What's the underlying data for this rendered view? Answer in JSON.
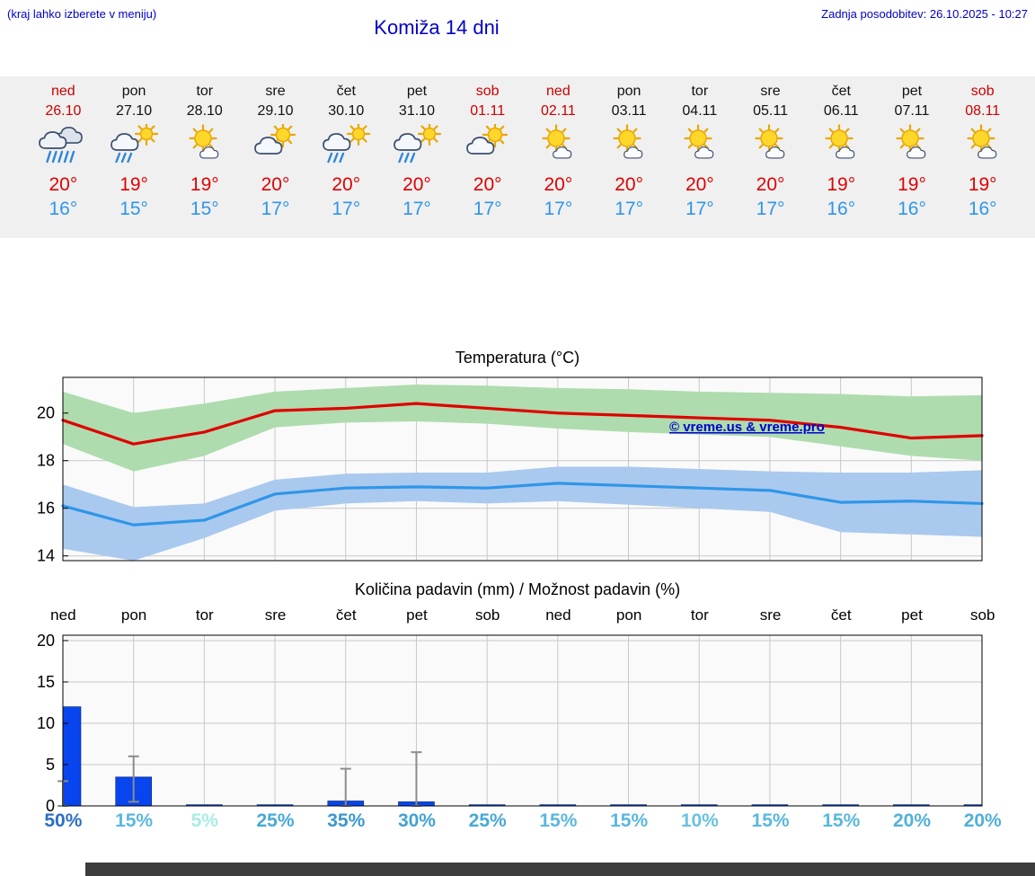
{
  "header": {
    "hint": "(kraj lahko izberete v meniju)",
    "title": "Komiža 14 dni",
    "updated": "Zadnja posodobitev: 26.10.2025 - 10:27"
  },
  "colors": {
    "header_text": "#0000c8",
    "weekend": "#cc0000",
    "temp_max": "#e00000",
    "temp_min": "#2f96e8",
    "precip_bar": "#0845ee"
  },
  "forecast": {
    "days": [
      {
        "name": "ned",
        "date": "26.10",
        "weekend": true,
        "icon": "rain-heavy",
        "tmax": "20°",
        "tmin": "16°"
      },
      {
        "name": "pon",
        "date": "27.10",
        "weekend": false,
        "icon": "sun-cloud-rain",
        "tmax": "19°",
        "tmin": "15°"
      },
      {
        "name": "tor",
        "date": "28.10",
        "weekend": false,
        "icon": "partly-sunny",
        "tmax": "19°",
        "tmin": "15°"
      },
      {
        "name": "sre",
        "date": "29.10",
        "weekend": false,
        "icon": "partly-cloudy",
        "tmax": "20°",
        "tmin": "17°"
      },
      {
        "name": "čet",
        "date": "30.10",
        "weekend": false,
        "icon": "sun-cloud-rain",
        "tmax": "20°",
        "tmin": "17°"
      },
      {
        "name": "pet",
        "date": "31.10",
        "weekend": false,
        "icon": "sun-cloud-rain",
        "tmax": "20°",
        "tmin": "17°"
      },
      {
        "name": "sob",
        "date": "01.11",
        "weekend": true,
        "icon": "partly-cloudy",
        "tmax": "20°",
        "tmin": "17°"
      },
      {
        "name": "ned",
        "date": "02.11",
        "weekend": true,
        "icon": "partly-sunny",
        "tmax": "20°",
        "tmin": "17°"
      },
      {
        "name": "pon",
        "date": "03.11",
        "weekend": false,
        "icon": "partly-sunny",
        "tmax": "20°",
        "tmin": "17°"
      },
      {
        "name": "tor",
        "date": "04.11",
        "weekend": false,
        "icon": "partly-sunny",
        "tmax": "20°",
        "tmin": "17°"
      },
      {
        "name": "sre",
        "date": "05.11",
        "weekend": false,
        "icon": "partly-sunny",
        "tmax": "20°",
        "tmin": "17°"
      },
      {
        "name": "čet",
        "date": "06.11",
        "weekend": false,
        "icon": "partly-sunny",
        "tmax": "19°",
        "tmin": "16°"
      },
      {
        "name": "pet",
        "date": "07.11",
        "weekend": false,
        "icon": "partly-sunny",
        "tmax": "19°",
        "tmin": "16°"
      },
      {
        "name": "sob",
        "date": "08.11",
        "weekend": true,
        "icon": "partly-sunny",
        "tmax": "19°",
        "tmin": "16°"
      }
    ]
  },
  "chart_data": [
    {
      "type": "line",
      "title": "Temperatura (°C)",
      "x_labels": [
        "ned 26.10",
        "pon 27.10",
        "tor 28.10",
        "sre 29.10",
        "čet 30.10",
        "pet 31.10",
        "sob 01.11",
        "ned 02.11",
        "pon 03.11",
        "tor 04.11",
        "sre 05.11",
        "čet 06.11",
        "pet 07.11",
        "sob 08.11"
      ],
      "ylim": [
        13.8,
        21.5
      ],
      "yticks": [
        14,
        16,
        18,
        20
      ],
      "grid": true,
      "legend": "none",
      "watermark": "© vreme.us & vreme.pro",
      "watermark_color": "#0000cc",
      "series": [
        {
          "name": "max-temp",
          "color": "#e00000",
          "width": 3.2,
          "values": [
            19.7,
            18.7,
            19.2,
            20.1,
            20.2,
            20.4,
            20.2,
            20.0,
            19.9,
            19.8,
            19.7,
            19.4,
            18.95,
            19.05
          ]
        },
        {
          "name": "min-temp",
          "color": "#2f96e8",
          "width": 3.2,
          "values": [
            16.1,
            15.3,
            15.5,
            16.6,
            16.85,
            16.9,
            16.85,
            17.05,
            16.95,
            16.85,
            16.75,
            16.25,
            16.3,
            16.2
          ]
        }
      ],
      "bands": [
        {
          "name": "max-range",
          "color": "#aedcae",
          "upper": [
            20.9,
            20.0,
            20.4,
            20.9,
            21.05,
            21.2,
            21.15,
            21.05,
            21.0,
            20.9,
            20.85,
            20.8,
            20.7,
            20.75
          ],
          "lower": [
            18.7,
            17.55,
            18.2,
            19.4,
            19.6,
            19.65,
            19.55,
            19.35,
            19.2,
            19.1,
            19.0,
            18.6,
            18.2,
            18.0
          ]
        },
        {
          "name": "min-range",
          "color": "#aac9ee",
          "upper": [
            17.0,
            16.05,
            16.2,
            17.2,
            17.45,
            17.5,
            17.5,
            17.75,
            17.75,
            17.65,
            17.55,
            17.5,
            17.5,
            17.6
          ],
          "lower": [
            14.3,
            13.8,
            14.75,
            15.9,
            16.2,
            16.3,
            16.2,
            16.3,
            16.15,
            16.0,
            15.85,
            15.0,
            14.9,
            14.8
          ]
        }
      ]
    },
    {
      "type": "bar",
      "title": "Količina padavin (mm) / Možnost padavin (%)",
      "categories": [
        "ned",
        "pon",
        "tor",
        "sre",
        "čet",
        "pet",
        "sob",
        "ned",
        "pon",
        "tor",
        "sre",
        "čet",
        "pet",
        "sob"
      ],
      "values": [
        12.0,
        3.5,
        0.05,
        0.12,
        0.6,
        0.5,
        0.12,
        0.05,
        0.1,
        0.05,
        0.1,
        0.05,
        0.12,
        0.12
      ],
      "bar_color": "#0845ee",
      "whisker_high": [
        3.0,
        6.0,
        null,
        null,
        4.5,
        6.5,
        null,
        null,
        null,
        null,
        null,
        null,
        null,
        null
      ],
      "whisker_low": [
        0,
        0.5,
        null,
        null,
        0,
        0,
        null,
        null,
        null,
        null,
        null,
        null,
        null,
        null
      ],
      "ylim": [
        0,
        20.65
      ],
      "yticks": [
        0,
        5,
        10,
        15,
        20
      ],
      "grid": true,
      "probabilities": [
        {
          "label": "50%",
          "value": 50,
          "color": "#2b6fc4"
        },
        {
          "label": "15%",
          "value": 15,
          "color": "#5ab8de"
        },
        {
          "label": "5%",
          "value": 5,
          "color": "#a7ece6"
        },
        {
          "label": "25%",
          "value": 25,
          "color": "#49a9d6"
        },
        {
          "label": "35%",
          "value": 35,
          "color": "#3a98cc"
        },
        {
          "label": "30%",
          "value": 30,
          "color": "#42a2d2"
        },
        {
          "label": "25%",
          "value": 25,
          "color": "#49a9d6"
        },
        {
          "label": "15%",
          "value": 15,
          "color": "#5ab8de"
        },
        {
          "label": "15%",
          "value": 15,
          "color": "#5ab8de"
        },
        {
          "label": "10%",
          "value": 10,
          "color": "#68c2e0"
        },
        {
          "label": "15%",
          "value": 15,
          "color": "#5ab8de"
        },
        {
          "label": "15%",
          "value": 15,
          "color": "#5ab8de"
        },
        {
          "label": "20%",
          "value": 20,
          "color": "#52b0d8"
        },
        {
          "label": "20%",
          "value": 20,
          "color": "#52b0d8"
        }
      ]
    }
  ]
}
